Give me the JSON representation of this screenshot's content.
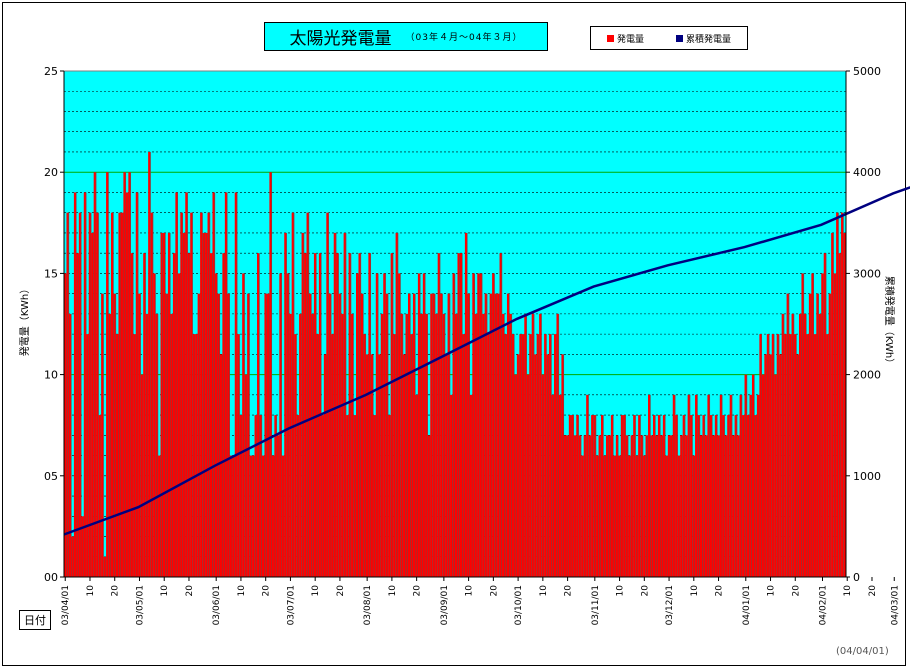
{
  "title": "太陽光発電量",
  "subtitle": "（03年４月～04年３月）",
  "date_stamp": "(04/04/01)",
  "xlabel": "日付",
  "legend": [
    {
      "label": "発電量",
      "color": "#ff0000"
    },
    {
      "label": "累積発電量",
      "color": "#000080"
    }
  ],
  "colors": {
    "plot_bg": "#00ffff",
    "bar": "#ff0000",
    "bar_edge": "#008080",
    "line": "#000080",
    "major_grid": "#00aa00",
    "minor_grid": "#000000"
  },
  "chart_data": {
    "type": "bar",
    "ylabel": "発電量（KWh）",
    "y2label": "累積発電量（KWh）",
    "ylim": [
      0,
      25
    ],
    "y2lim": [
      0,
      5000
    ],
    "y_ticks": [
      "00",
      "05",
      "10",
      "15",
      "20",
      "25"
    ],
    "y2_ticks": [
      "0",
      "1000",
      "2000",
      "3000",
      "4000",
      "5000"
    ],
    "x_ticks": [
      {
        "day": 0,
        "label": "03/04/01"
      },
      {
        "day": 10,
        "label": "10"
      },
      {
        "day": 20,
        "label": "20"
      },
      {
        "day": 30,
        "label": "03/05/01"
      },
      {
        "day": 40,
        "label": "10"
      },
      {
        "day": 50,
        "label": "20"
      },
      {
        "day": 61,
        "label": "03/06/01"
      },
      {
        "day": 71,
        "label": "10"
      },
      {
        "day": 81,
        "label": "20"
      },
      {
        "day": 91,
        "label": "03/07/01"
      },
      {
        "day": 101,
        "label": "10"
      },
      {
        "day": 111,
        "label": "20"
      },
      {
        "day": 122,
        "label": "03/08/01"
      },
      {
        "day": 132,
        "label": "10"
      },
      {
        "day": 142,
        "label": "20"
      },
      {
        "day": 153,
        "label": "03/09/01"
      },
      {
        "day": 163,
        "label": "10"
      },
      {
        "day": 173,
        "label": "20"
      },
      {
        "day": 183,
        "label": "03/10/01"
      },
      {
        "day": 193,
        "label": "10"
      },
      {
        "day": 203,
        "label": "20"
      },
      {
        "day": 214,
        "label": "03/11/01"
      },
      {
        "day": 224,
        "label": "10"
      },
      {
        "day": 234,
        "label": "20"
      },
      {
        "day": 244,
        "label": "03/12/01"
      },
      {
        "day": 254,
        "label": "10"
      },
      {
        "day": 264,
        "label": "20"
      },
      {
        "day": 275,
        "label": "04/01/01"
      },
      {
        "day": 285,
        "label": "10"
      },
      {
        "day": 295,
        "label": "20"
      },
      {
        "day": 306,
        "label": "04/02/01"
      },
      {
        "day": 316,
        "label": "10"
      },
      {
        "day": 326,
        "label": "20"
      },
      {
        "day": 335,
        "label": "04/03/01"
      },
      {
        "day": 345,
        "label": "10"
      },
      {
        "day": 355,
        "label": "20"
      },
      {
        "day": 365,
        "label": "31"
      }
    ],
    "series": [
      {
        "name": "発電量",
        "axis": "left",
        "values": [
          15,
          18,
          13,
          2,
          19,
          16,
          18,
          3,
          19,
          12,
          18,
          17,
          20,
          18,
          8,
          14,
          1,
          20,
          13,
          18,
          14,
          12,
          18,
          18,
          20,
          19,
          20,
          16,
          12,
          19,
          14,
          10,
          16,
          13,
          21,
          18,
          15,
          13,
          6,
          17,
          17,
          14,
          17,
          13,
          16,
          19,
          15,
          18,
          17,
          19,
          16,
          18,
          12,
          12,
          14,
          18,
          17,
          17,
          18,
          16,
          19,
          15,
          14,
          11,
          16,
          19,
          14,
          6,
          6,
          19,
          12,
          8,
          15,
          10,
          14,
          6,
          6,
          8,
          16,
          8,
          6,
          14,
          14,
          20,
          6,
          8,
          7,
          15,
          6,
          17,
          15,
          13,
          18,
          12,
          8,
          13,
          17,
          16,
          18,
          14,
          13,
          16,
          12,
          16,
          8,
          11,
          18,
          14,
          12,
          17,
          16,
          14,
          13,
          17,
          8,
          16,
          13,
          8,
          15,
          16,
          14,
          12,
          11,
          16,
          11,
          8,
          15,
          11,
          13,
          15,
          14,
          8,
          16,
          12,
          17,
          15,
          13,
          11,
          13,
          14,
          12,
          14,
          9,
          15,
          13,
          15,
          13,
          7,
          14,
          14,
          13,
          16,
          14,
          13,
          11,
          14,
          9,
          15,
          13,
          16,
          16,
          12,
          17,
          14,
          9,
          15,
          13,
          15,
          15,
          13,
          14,
          12,
          14,
          15,
          14,
          14,
          16,
          13,
          12,
          14,
          13,
          12,
          10,
          11,
          12,
          12,
          13,
          10,
          12,
          13,
          11,
          12,
          13,
          10,
          12,
          11,
          12,
          9,
          12,
          13,
          9,
          11,
          7,
          7,
          8,
          8,
          7,
          8,
          7,
          6,
          7,
          9,
          7,
          8,
          8,
          6,
          7,
          8,
          6,
          7,
          7,
          8,
          6,
          7,
          6,
          8,
          8,
          7,
          6,
          7,
          8,
          6,
          8,
          7,
          6,
          7,
          9,
          7,
          8,
          7,
          8,
          7,
          8,
          6,
          7,
          7,
          9,
          8,
          6,
          7,
          8,
          7,
          9,
          8,
          6,
          9,
          8,
          7,
          8,
          7,
          9,
          8,
          7,
          8,
          7,
          9,
          8,
          7,
          8,
          9,
          7,
          8,
          7,
          9,
          8,
          10,
          8,
          9,
          10,
          8,
          9,
          12,
          10,
          11,
          12,
          11,
          12,
          10,
          12,
          11,
          13,
          12,
          14,
          12,
          13,
          12,
          11,
          13,
          15,
          13,
          12,
          14,
          15,
          12,
          14,
          13,
          15,
          16,
          12,
          14,
          17,
          15,
          18,
          16,
          18,
          17
        ]
      },
      {
        "name": "累積発電量",
        "axis": "right",
        "cumulative_checkpoints": [
          {
            "day": 0,
            "value": 420
          },
          {
            "day": 30,
            "value": 690
          },
          {
            "day": 61,
            "value": 1100
          },
          {
            "day": 91,
            "value": 1470
          },
          {
            "day": 122,
            "value": 1800
          },
          {
            "day": 153,
            "value": 2180
          },
          {
            "day": 183,
            "value": 2550
          },
          {
            "day": 214,
            "value": 2870
          },
          {
            "day": 244,
            "value": 3080
          },
          {
            "day": 275,
            "value": 3260
          },
          {
            "day": 306,
            "value": 3480
          },
          {
            "day": 335,
            "value": 3790
          },
          {
            "day": 365,
            "value": 4050
          }
        ]
      }
    ],
    "grid": true,
    "legend_position": "top-right"
  }
}
